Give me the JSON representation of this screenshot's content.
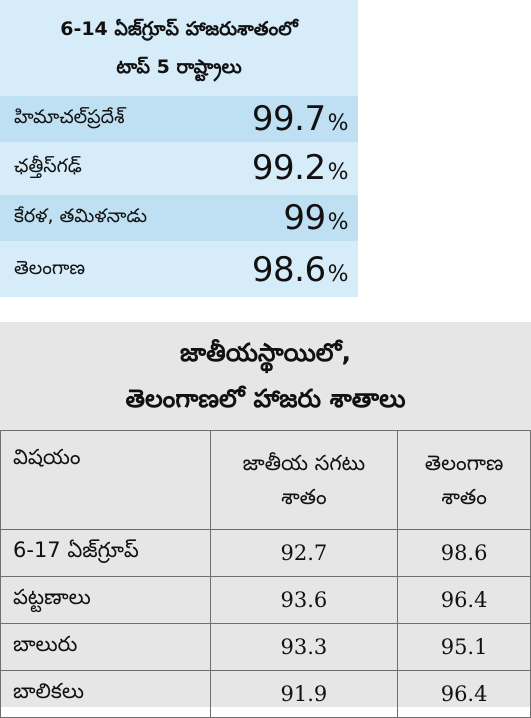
{
  "top_table": {
    "title_line1": "6-14 ఏజ్‌గ్రూప్ హాజరుశాతంలో",
    "title_line2": "టాప్ 5 రాష్ట్రాలు",
    "rows": [
      {
        "state": "హిమాచల్‌ప్రదేశ్",
        "value": "99.7",
        "unit": "%"
      },
      {
        "state": "ఛత్తీస్‌గఢ్",
        "value": "99.2",
        "unit": "%"
      },
      {
        "state": "కేరళ, తమిళనాడు",
        "value": "99",
        "unit": "%"
      },
      {
        "state": "తెలంగాణ",
        "value": "98.6",
        "unit": "%"
      }
    ]
  },
  "bottom_table": {
    "title_line1": "జాతీయస్థాయిలో,",
    "title_line2": "తెలంగాణలో హాజరు శాతాలు",
    "headers": {
      "col0": "విషయం",
      "col1_line1": "జాతీయ సగటు",
      "col1_line2": "శాతం",
      "col2_line1": "తెలంగాణ",
      "col2_line2": "శాతం"
    },
    "rows": [
      {
        "label": "6-17 ఏజ్‌గ్రూప్",
        "national": "92.7",
        "telangana": "98.6"
      },
      {
        "label": "పట్టణాలు",
        "national": "93.6",
        "telangana": "96.4"
      },
      {
        "label": "బాలురు",
        "national": "93.3",
        "telangana": "95.1"
      },
      {
        "label": "బాలికలు",
        "national": "91.9",
        "telangana": "96.4"
      }
    ]
  }
}
